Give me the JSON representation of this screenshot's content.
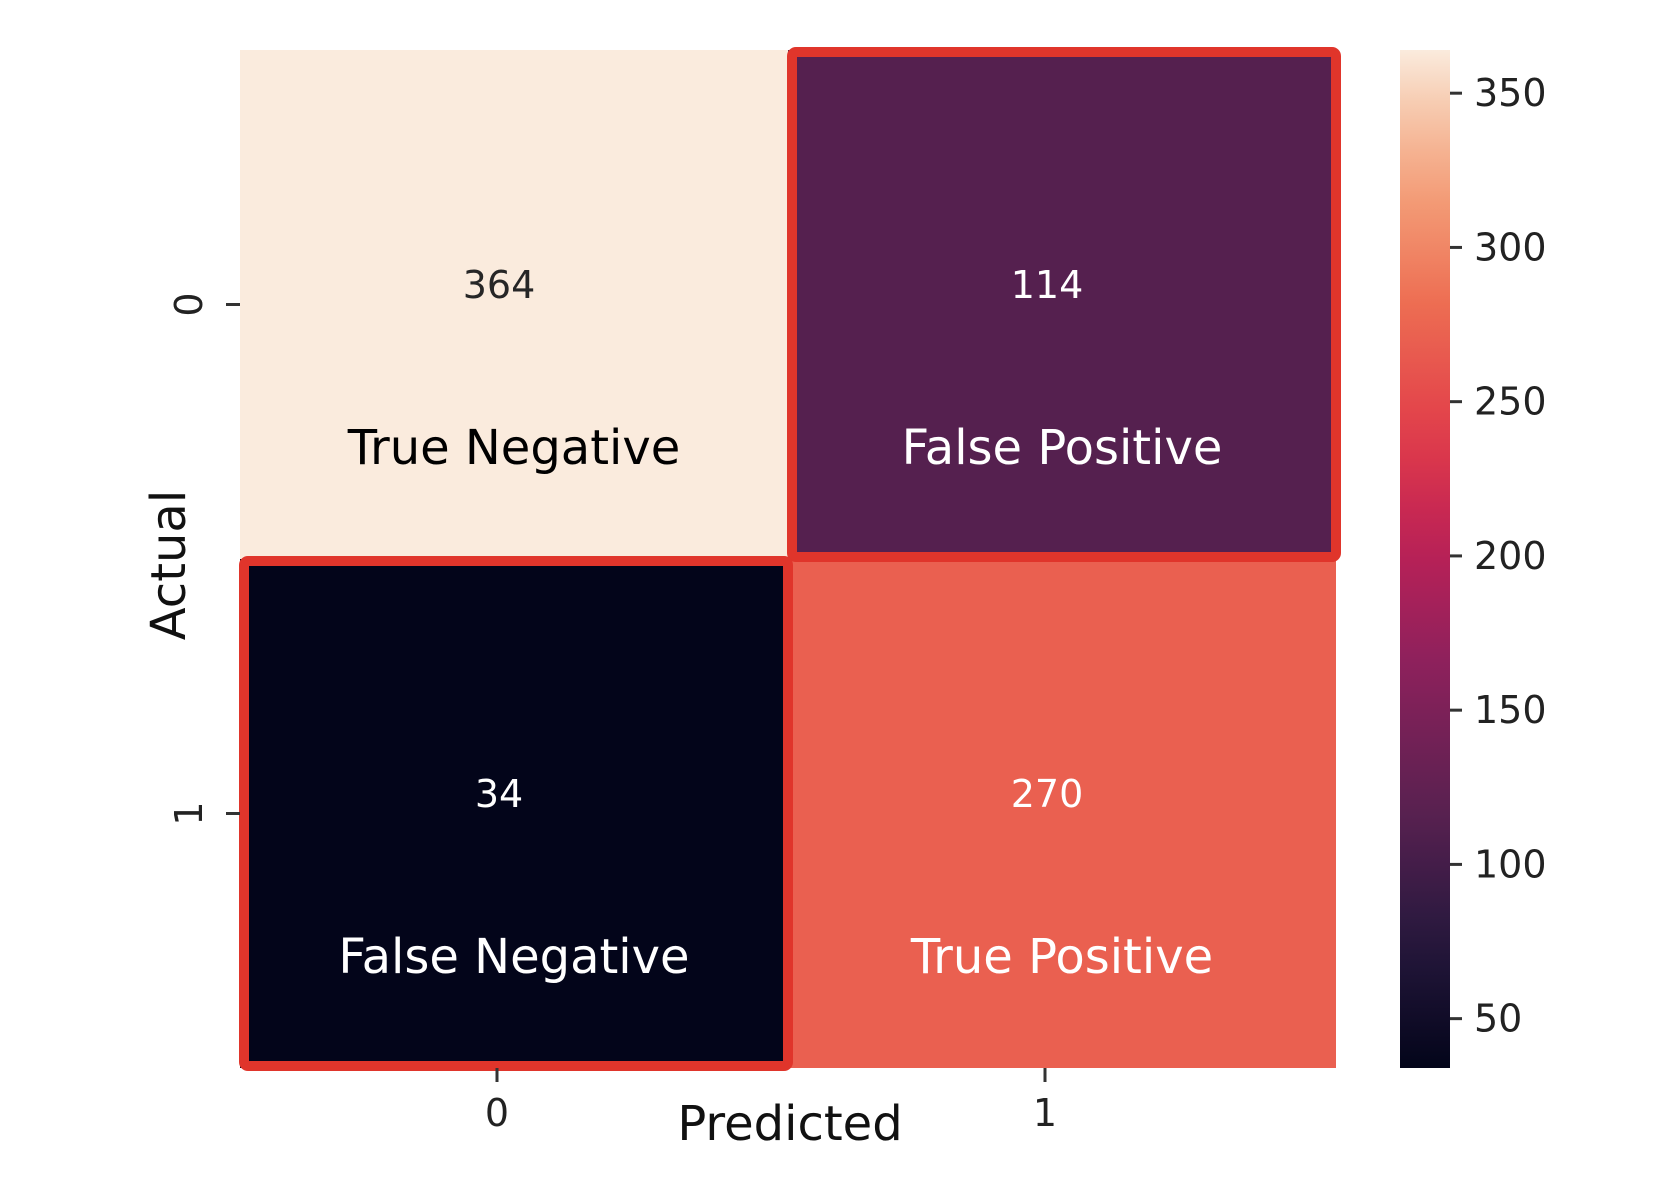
{
  "chart_data": {
    "type": "heatmap",
    "xlabel": "Predicted",
    "ylabel": "Actual",
    "x_categories": [
      "0",
      "1"
    ],
    "y_categories": [
      "0",
      "1"
    ],
    "values": [
      [
        364,
        114
      ],
      [
        34,
        270
      ]
    ],
    "annotations": [
      [
        "True Negative",
        "False Positive"
      ],
      [
        "False Negative",
        "True Positive"
      ]
    ],
    "highlighted_cells": [
      [
        0,
        1
      ],
      [
        1,
        0
      ]
    ],
    "highlight_color": "#e0352b",
    "colormap": "rocket",
    "colorbar": {
      "range": [
        34,
        364
      ],
      "ticks": [
        50,
        100,
        150,
        200,
        250,
        300,
        350
      ]
    }
  }
}
